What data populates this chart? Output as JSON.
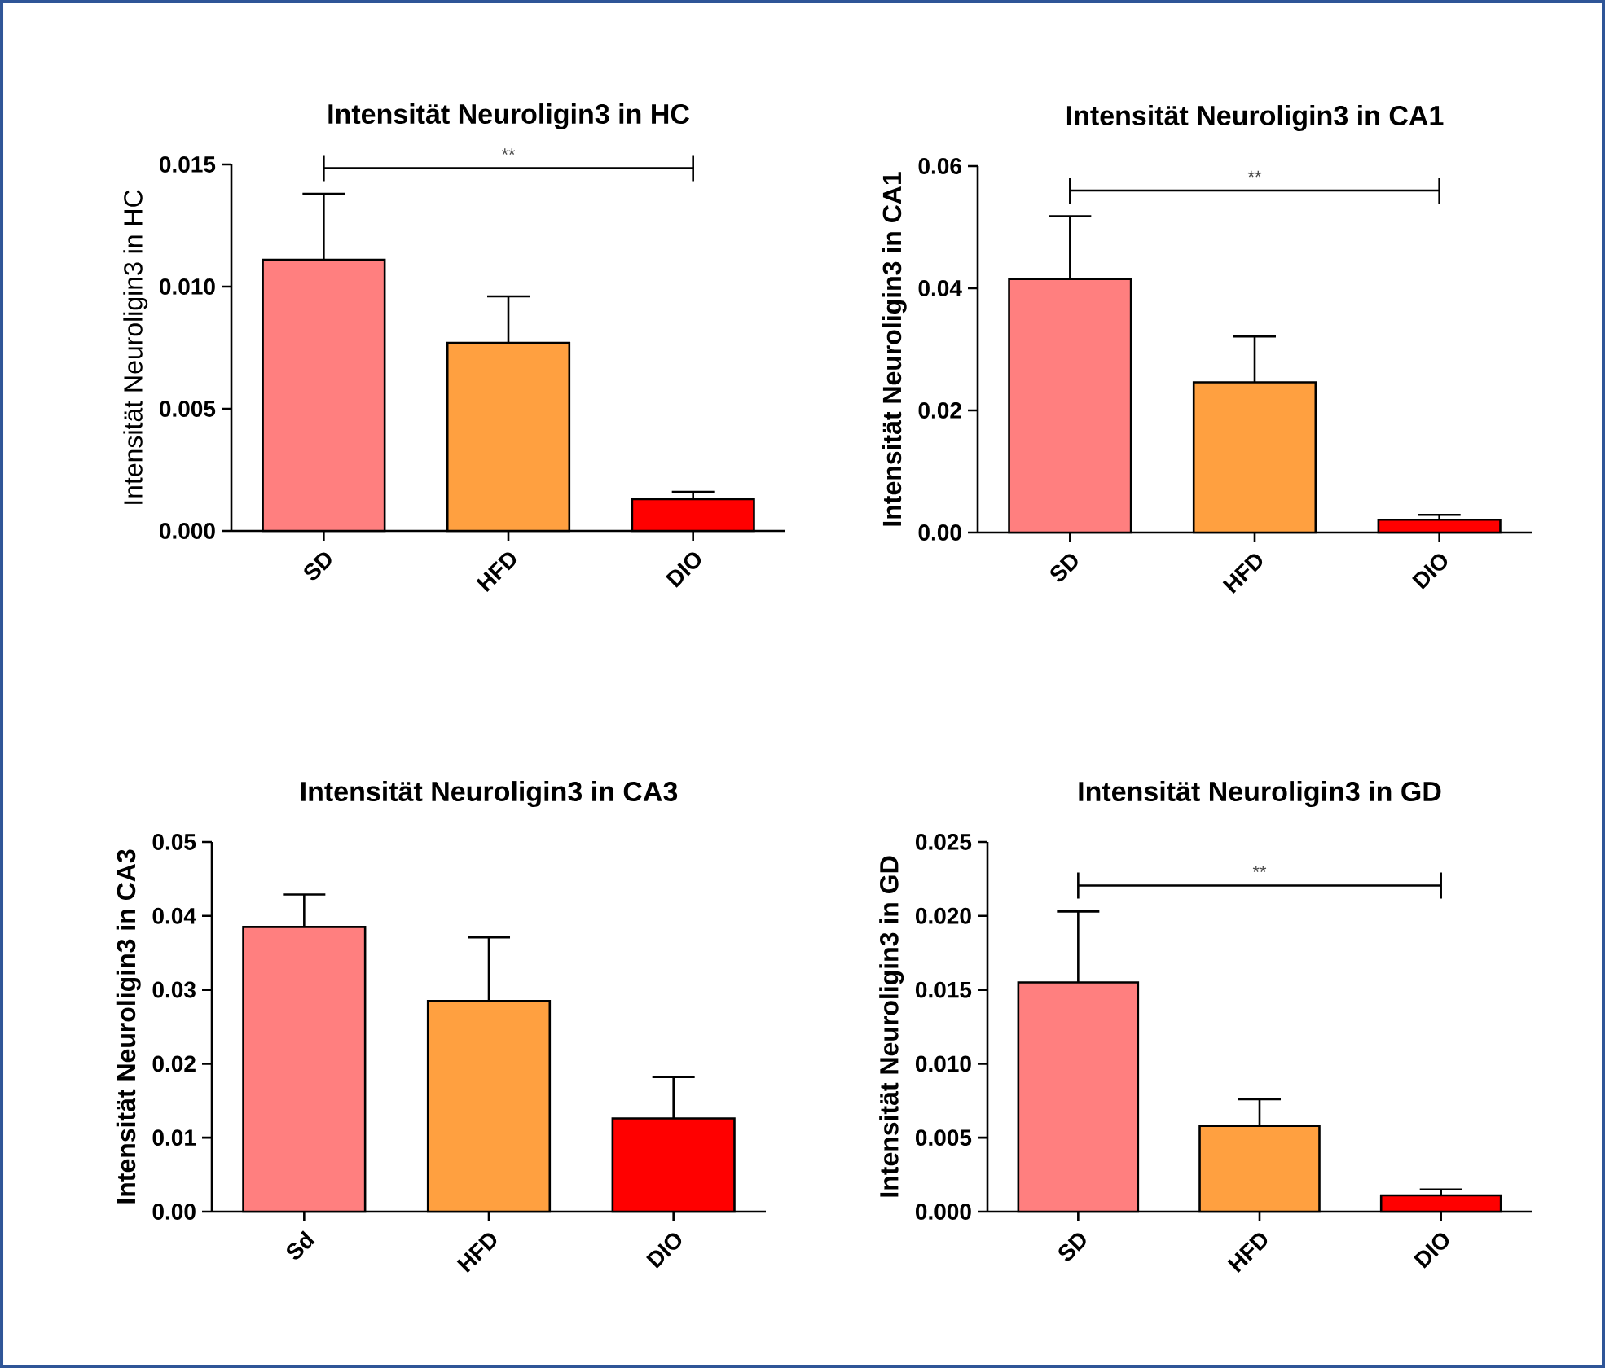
{
  "chart_data": [
    {
      "type": "bar",
      "title": "Intensität Neuroligin3 in HC",
      "ylabel": "Intensität Neuroligin3 in HC",
      "categories": [
        "SD",
        "HFD",
        "DIO"
      ],
      "values": [
        0.0111,
        0.0077,
        0.0013
      ],
      "errors": [
        0.0027,
        0.0019,
        0.0003
      ],
      "colors": [
        "#ff7f7f",
        "#ffa040",
        "#ff0000"
      ],
      "ylim": [
        0,
        0.015
      ],
      "yticks": [
        {
          "value": 0,
          "label": "0.000"
        },
        {
          "value": 0.005,
          "label": "0.005"
        },
        {
          "value": 0.01,
          "label": "0.010"
        },
        {
          "value": 0.015,
          "label": "0.015"
        }
      ],
      "annotations": [
        "**"
      ]
    },
    {
      "type": "bar",
      "title": "Intensität Neuroligin3 in CA1",
      "ylabel": "Intensität Neuroligin3 in CA1",
      "categories": [
        "SD",
        "HFD",
        "DIO"
      ],
      "values": [
        0.0415,
        0.0246,
        0.0021
      ],
      "errors": [
        0.0103,
        0.0075,
        0.0008
      ],
      "colors": [
        "#ff7f7f",
        "#ffa040",
        "#ff0000"
      ],
      "ylim": [
        0,
        0.06
      ],
      "yticks": [
        {
          "value": 0,
          "label": "0.00"
        },
        {
          "value": 0.02,
          "label": "0.02"
        },
        {
          "value": 0.04,
          "label": "0.04"
        },
        {
          "value": 0.06,
          "label": "0.06"
        }
      ],
      "annotations": [
        "**"
      ]
    },
    {
      "type": "bar",
      "title": "Intensität Neuroligin3 in CA3",
      "ylabel": "Intensität Neuroligin3 in CA3",
      "categories": [
        "Sd",
        "HFD",
        "DIO"
      ],
      "values": [
        0.0385,
        0.0285,
        0.0126
      ],
      "errors": [
        0.0044,
        0.0086,
        0.0056
      ],
      "colors": [
        "#ff7f7f",
        "#ffa040",
        "#ff0000"
      ],
      "ylim": [
        0,
        0.05
      ],
      "yticks": [
        {
          "value": 0,
          "label": "0.00"
        },
        {
          "value": 0.01,
          "label": "0.01"
        },
        {
          "value": 0.02,
          "label": "0.02"
        },
        {
          "value": 0.03,
          "label": "0.03"
        },
        {
          "value": 0.04,
          "label": "0.04"
        },
        {
          "value": 0.05,
          "label": "0.05"
        }
      ]
    },
    {
      "type": "bar",
      "title": "Intensität Neuroligin3 in GD",
      "ylabel": "Intensität Neuroligin3 in GD",
      "categories": [
        "SD",
        "HFD",
        "DIO"
      ],
      "values": [
        0.0155,
        0.0058,
        0.0011
      ],
      "errors": [
        0.0048,
        0.0018,
        0.0004
      ],
      "colors": [
        "#ff7f7f",
        "#ffa040",
        "#ff0000"
      ],
      "ylim": [
        0,
        0.025
      ],
      "yticks": [
        {
          "value": 0,
          "label": "0.000"
        },
        {
          "value": 0.005,
          "label": "0.005"
        },
        {
          "value": 0.01,
          "label": "0.010"
        },
        {
          "value": 0.015,
          "label": "0.015"
        },
        {
          "value": 0.02,
          "label": "0.020"
        },
        {
          "value": 0.025,
          "label": "0.025"
        }
      ],
      "annotations": [
        "**"
      ]
    }
  ]
}
